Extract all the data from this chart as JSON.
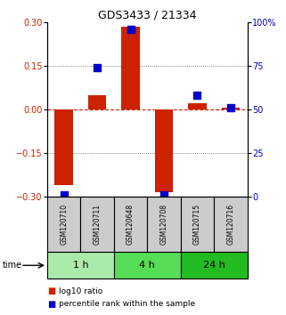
{
  "title": "GDS3433 / 21334",
  "samples": [
    "GSM120710",
    "GSM120711",
    "GSM120648",
    "GSM120708",
    "GSM120715",
    "GSM120716"
  ],
  "log10_ratio": [
    -0.26,
    0.05,
    0.285,
    -0.285,
    0.02,
    0.005
  ],
  "percentile_rank": [
    1,
    74,
    96,
    1,
    58,
    51
  ],
  "group_configs": [
    {
      "start": 0,
      "end": 1,
      "label": "1 h",
      "color": "#aaeaaa"
    },
    {
      "start": 2,
      "end": 3,
      "label": "4 h",
      "color": "#55dd55"
    },
    {
      "start": 4,
      "end": 5,
      "label": "24 h",
      "color": "#22bb22"
    }
  ],
  "bar_color": "#cc2200",
  "dot_color": "#0000cc",
  "ylim_left": [
    -0.3,
    0.3
  ],
  "ylim_right": [
    0,
    100
  ],
  "yticks_left": [
    -0.3,
    -0.15,
    0,
    0.15,
    0.3
  ],
  "yticks_right": [
    0,
    25,
    50,
    75,
    100
  ],
  "hline_y0_color": "#cc2200",
  "dotted_color": "#555555",
  "label_box_color": "#cccccc",
  "bg_color": "#ffffff",
  "title_fontsize": 9,
  "tick_fontsize": 7,
  "sample_fontsize": 5.5,
  "group_fontsize": 8,
  "legend_fontsize": 6.5
}
